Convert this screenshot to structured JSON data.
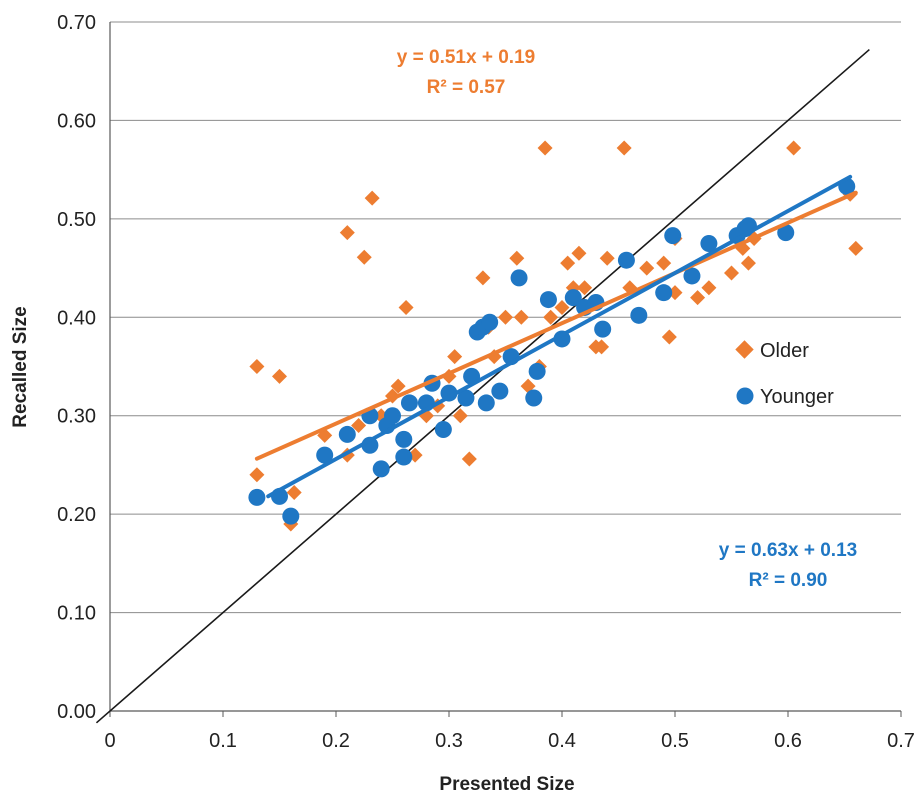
{
  "chart_data": {
    "type": "scatter",
    "xlabel": "Presented Size",
    "ylabel": "Recalled Size",
    "xlim": [
      0,
      0.7
    ],
    "ylim": [
      0,
      0.7
    ],
    "x_ticks": [
      "0",
      "0.1",
      "0.2",
      "0.3",
      "0.4",
      "0.5",
      "0.6",
      "0.7"
    ],
    "y_ticks": [
      "0.00",
      "0.10",
      "0.20",
      "0.30",
      "0.40",
      "0.50",
      "0.60",
      "0.70"
    ],
    "grid": "horizontal",
    "legend_position": "right",
    "identity_line": true,
    "series": [
      {
        "name": "Older",
        "marker": "diamond",
        "color": "#ED7D31",
        "points": [
          [
            0.13,
            0.35
          ],
          [
            0.15,
            0.34
          ],
          [
            0.13,
            0.24
          ],
          [
            0.16,
            0.19
          ],
          [
            0.163,
            0.222
          ],
          [
            0.19,
            0.28
          ],
          [
            0.21,
            0.486
          ],
          [
            0.225,
            0.461
          ],
          [
            0.232,
            0.521
          ],
          [
            0.21,
            0.26
          ],
          [
            0.22,
            0.29
          ],
          [
            0.23,
            0.27
          ],
          [
            0.24,
            0.3
          ],
          [
            0.25,
            0.32
          ],
          [
            0.255,
            0.33
          ],
          [
            0.262,
            0.41
          ],
          [
            0.27,
            0.26
          ],
          [
            0.28,
            0.3
          ],
          [
            0.29,
            0.31
          ],
          [
            0.3,
            0.34
          ],
          [
            0.305,
            0.36
          ],
          [
            0.31,
            0.3
          ],
          [
            0.318,
            0.256
          ],
          [
            0.33,
            0.44
          ],
          [
            0.335,
            0.39
          ],
          [
            0.34,
            0.36
          ],
          [
            0.35,
            0.4
          ],
          [
            0.36,
            0.46
          ],
          [
            0.364,
            0.4
          ],
          [
            0.37,
            0.33
          ],
          [
            0.38,
            0.35
          ],
          [
            0.385,
            0.572
          ],
          [
            0.39,
            0.4
          ],
          [
            0.4,
            0.41
          ],
          [
            0.405,
            0.455
          ],
          [
            0.41,
            0.43
          ],
          [
            0.415,
            0.465
          ],
          [
            0.42,
            0.43
          ],
          [
            0.43,
            0.37
          ],
          [
            0.435,
            0.37
          ],
          [
            0.44,
            0.46
          ],
          [
            0.455,
            0.572
          ],
          [
            0.46,
            0.43
          ],
          [
            0.475,
            0.45
          ],
          [
            0.49,
            0.455
          ],
          [
            0.495,
            0.38
          ],
          [
            0.5,
            0.425
          ],
          [
            0.5,
            0.48
          ],
          [
            0.52,
            0.42
          ],
          [
            0.53,
            0.43
          ],
          [
            0.55,
            0.445
          ],
          [
            0.56,
            0.47
          ],
          [
            0.565,
            0.455
          ],
          [
            0.57,
            0.48
          ],
          [
            0.605,
            0.572
          ],
          [
            0.655,
            0.525
          ],
          [
            0.66,
            0.47
          ]
        ],
        "trendline": {
          "slope": 0.51,
          "intercept": 0.19,
          "x_range": [
            0.13,
            0.66
          ],
          "equation": "y = 0.51x + 0.19",
          "r2": "R² = 0.57"
        }
      },
      {
        "name": "Younger",
        "marker": "circle",
        "color": "#1F77C4",
        "points": [
          [
            0.13,
            0.217
          ],
          [
            0.15,
            0.218
          ],
          [
            0.16,
            0.198
          ],
          [
            0.19,
            0.26
          ],
          [
            0.21,
            0.281
          ],
          [
            0.23,
            0.3
          ],
          [
            0.23,
            0.27
          ],
          [
            0.24,
            0.246
          ],
          [
            0.245,
            0.29
          ],
          [
            0.25,
            0.3
          ],
          [
            0.26,
            0.276
          ],
          [
            0.26,
            0.258
          ],
          [
            0.265,
            0.313
          ],
          [
            0.28,
            0.313
          ],
          [
            0.285,
            0.333
          ],
          [
            0.295,
            0.286
          ],
          [
            0.3,
            0.323
          ],
          [
            0.315,
            0.318
          ],
          [
            0.32,
            0.34
          ],
          [
            0.325,
            0.385
          ],
          [
            0.33,
            0.39
          ],
          [
            0.333,
            0.313
          ],
          [
            0.336,
            0.395
          ],
          [
            0.345,
            0.325
          ],
          [
            0.355,
            0.36
          ],
          [
            0.362,
            0.44
          ],
          [
            0.375,
            0.318
          ],
          [
            0.378,
            0.345
          ],
          [
            0.388,
            0.418
          ],
          [
            0.4,
            0.378
          ],
          [
            0.41,
            0.42
          ],
          [
            0.42,
            0.41
          ],
          [
            0.43,
            0.415
          ],
          [
            0.436,
            0.388
          ],
          [
            0.457,
            0.458
          ],
          [
            0.468,
            0.402
          ],
          [
            0.49,
            0.425
          ],
          [
            0.498,
            0.483
          ],
          [
            0.515,
            0.442
          ],
          [
            0.53,
            0.475
          ],
          [
            0.555,
            0.483
          ],
          [
            0.562,
            0.49
          ],
          [
            0.565,
            0.493
          ],
          [
            0.598,
            0.486
          ],
          [
            0.652,
            0.533
          ]
        ],
        "trendline": {
          "slope": 0.63,
          "intercept": 0.13,
          "x_range": [
            0.14,
            0.655
          ],
          "equation": "y = 0.63x + 0.13",
          "r2": "R² = 0.90"
        }
      }
    ]
  }
}
